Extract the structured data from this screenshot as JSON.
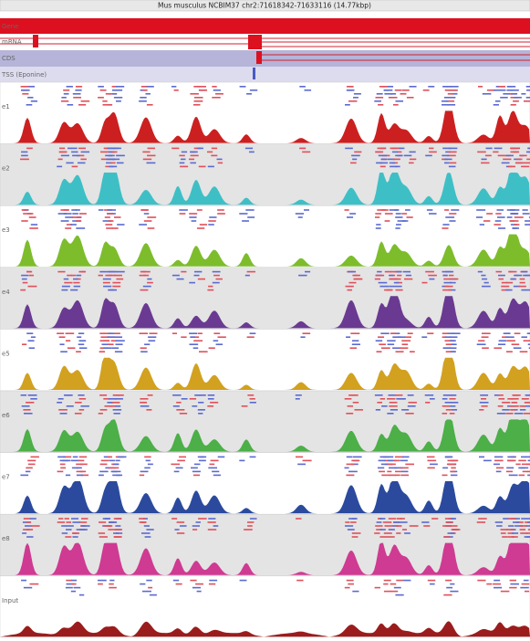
{
  "header": {
    "title": "Mus musculus NCBIM37 chr2:71618342-71633116 (14.77kbp)"
  },
  "annotation_tracks": [
    {
      "label": "Gene"
    },
    {
      "label": "mRNA"
    },
    {
      "label": "CDS"
    },
    {
      "label": "TSS (Eponine)"
    }
  ],
  "signal_tracks": [
    {
      "label": "e1",
      "color": "#cc2020"
    },
    {
      "label": "e2",
      "color": "#3ebfc6"
    },
    {
      "label": "e3",
      "color": "#7dbd2c"
    },
    {
      "label": "e4",
      "color": "#6a3a92"
    },
    {
      "label": "e5",
      "color": "#d2a11f"
    },
    {
      "label": "e6",
      "color": "#4caf48"
    },
    {
      "label": "e7",
      "color": "#2b4a9e"
    },
    {
      "label": "e8",
      "color": "#cf3a92"
    },
    {
      "label": "Input",
      "color": "#9b1c1c"
    }
  ]
}
